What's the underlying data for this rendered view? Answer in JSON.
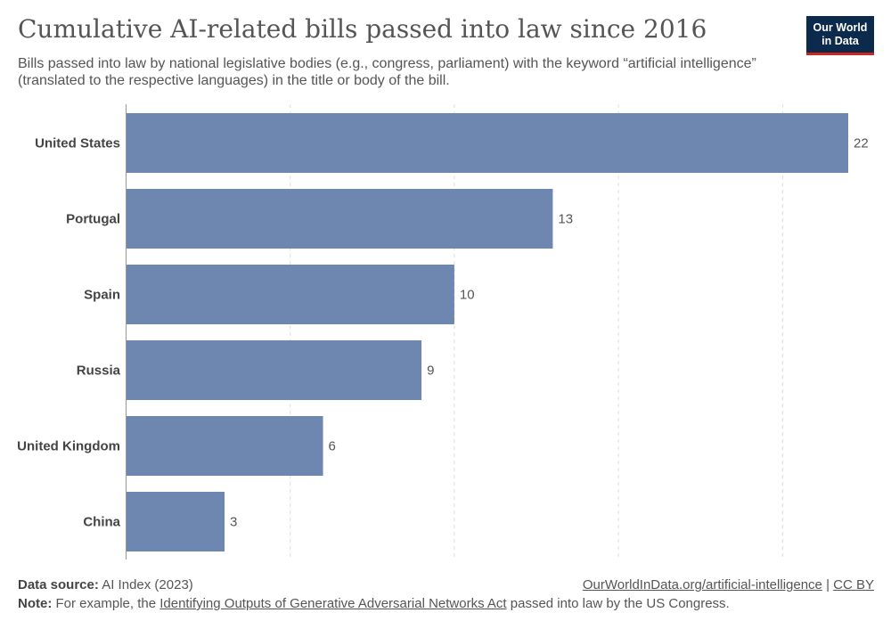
{
  "header": {
    "title": "Cumulative AI-related bills passed into law since 2016",
    "subtitle": "Bills passed into law by national legislative bodies (e.g., congress, parliament) with the keyword “artificial intelligence” (translated to the respective languages) in the title or body of the bill.",
    "logo_line1": "Our World",
    "logo_line2": "in Data"
  },
  "chart_data": {
    "type": "bar",
    "orientation": "horizontal",
    "categories": [
      "United States",
      "Portugal",
      "Spain",
      "Russia",
      "United Kingdom",
      "China"
    ],
    "values": [
      22,
      13,
      10,
      9,
      6,
      3
    ],
    "xlim": [
      0,
      22
    ],
    "gridlines": [
      0,
      5,
      10,
      15,
      20
    ],
    "grid": true,
    "bar_color": "#6d87b0"
  },
  "footer": {
    "source_label": "Data source:",
    "source_text": "AI Index (2023)",
    "url_text": "OurWorldInData.org/artificial-intelligence",
    "separator": "|",
    "license_text": "CC BY",
    "note_label": "Note:",
    "note_prefix": "For example, the",
    "note_link": "Identifying Outputs of Generative Adversarial Networks Act",
    "note_suffix": "passed into law by the US Congress."
  }
}
